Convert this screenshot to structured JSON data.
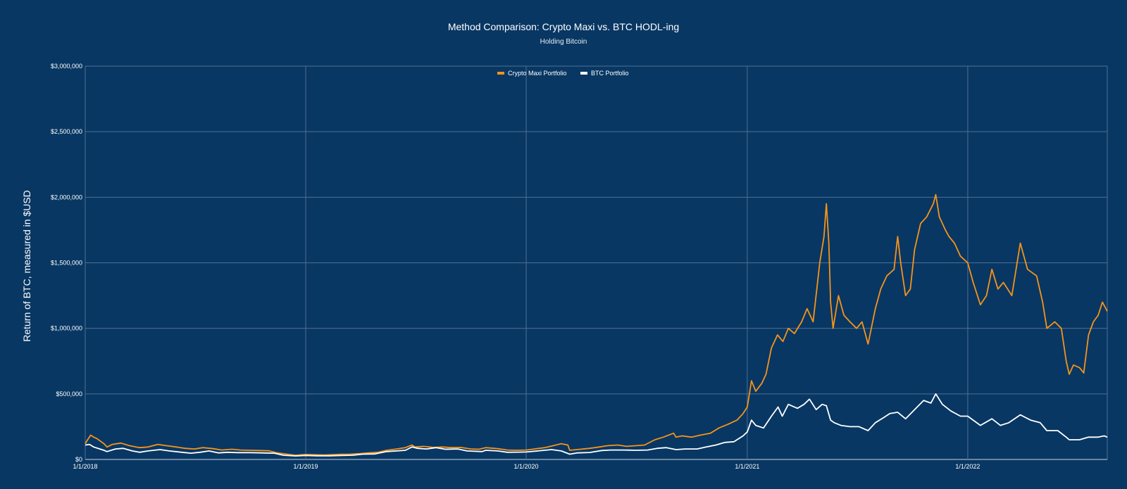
{
  "chart_data": {
    "type": "line",
    "title": "Method Comparison: Crypto Maxi vs. BTC HODL-ing",
    "subtitle": "Holding Bitcoin",
    "xlabel": "",
    "ylabel": "Return of BTC, measured in $USD",
    "ylim": [
      0,
      3000000
    ],
    "xlim": [
      "2018-01-01",
      "2022-08-20"
    ],
    "y_ticks": [
      0,
      500000,
      1000000,
      1500000,
      2000000,
      2500000,
      3000000
    ],
    "y_tick_labels": [
      "$0",
      "$500,000",
      "$1,000,000",
      "$1,500,000",
      "$2,000,000",
      "$2,500,000",
      "$3,000,000"
    ],
    "x_ticks": [
      "2018-01-01",
      "2019-01-01",
      "2020-01-01",
      "2021-01-01",
      "2022-01-01"
    ],
    "x_tick_labels": [
      "1/1/2018",
      "1/1/2019",
      "1/1/2020",
      "1/1/2021",
      "1/1/2022"
    ],
    "grid": true,
    "legend_position": "top-center",
    "series": [
      {
        "name": "Crypto Maxi Portfolio",
        "color": "#f7931a",
        "points": [
          [
            "2018-01-01",
            120000
          ],
          [
            "2018-01-05",
            150000
          ],
          [
            "2018-01-10",
            185000
          ],
          [
            "2018-01-15",
            170000
          ],
          [
            "2018-01-20",
            160000
          ],
          [
            "2018-02-01",
            120000
          ],
          [
            "2018-02-06",
            95000
          ],
          [
            "2018-02-15",
            115000
          ],
          [
            "2018-03-01",
            125000
          ],
          [
            "2018-03-15",
            105000
          ],
          [
            "2018-04-01",
            90000
          ],
          [
            "2018-04-15",
            95000
          ],
          [
            "2018-05-01",
            115000
          ],
          [
            "2018-05-15",
            105000
          ],
          [
            "2018-06-01",
            95000
          ],
          [
            "2018-06-15",
            85000
          ],
          [
            "2018-07-01",
            80000
          ],
          [
            "2018-07-15",
            90000
          ],
          [
            "2018-08-01",
            82000
          ],
          [
            "2018-08-15",
            72000
          ],
          [
            "2018-09-01",
            78000
          ],
          [
            "2018-09-15",
            72000
          ],
          [
            "2018-10-01",
            70000
          ],
          [
            "2018-10-15",
            68000
          ],
          [
            "2018-11-01",
            66000
          ],
          [
            "2018-11-15",
            50000
          ],
          [
            "2018-12-01",
            40000
          ],
          [
            "2018-12-15",
            32000
          ],
          [
            "2019-01-01",
            38000
          ],
          [
            "2019-01-15",
            36000
          ],
          [
            "2019-02-01",
            34000
          ],
          [
            "2019-02-15",
            37000
          ],
          [
            "2019-03-01",
            39000
          ],
          [
            "2019-03-15",
            40000
          ],
          [
            "2019-04-01",
            45000
          ],
          [
            "2019-04-15",
            50000
          ],
          [
            "2019-05-01",
            55000
          ],
          [
            "2019-05-15",
            70000
          ],
          [
            "2019-06-01",
            80000
          ],
          [
            "2019-06-15",
            90000
          ],
          [
            "2019-06-26",
            110000
          ],
          [
            "2019-07-01",
            95000
          ],
          [
            "2019-07-15",
            100000
          ],
          [
            "2019-08-01",
            92000
          ],
          [
            "2019-08-15",
            95000
          ],
          [
            "2019-09-01",
            90000
          ],
          [
            "2019-09-15",
            92000
          ],
          [
            "2019-10-01",
            80000
          ],
          [
            "2019-10-15",
            78000
          ],
          [
            "2019-10-26",
            90000
          ],
          [
            "2019-11-15",
            82000
          ],
          [
            "2019-12-01",
            72000
          ],
          [
            "2019-12-15",
            70000
          ],
          [
            "2020-01-01",
            72000
          ],
          [
            "2020-01-15",
            80000
          ],
          [
            "2020-02-01",
            90000
          ],
          [
            "2020-02-15",
            105000
          ],
          [
            "2020-02-28",
            120000
          ],
          [
            "2020-03-10",
            110000
          ],
          [
            "2020-03-13",
            70000
          ],
          [
            "2020-03-25",
            75000
          ],
          [
            "2020-04-15",
            85000
          ],
          [
            "2020-05-01",
            95000
          ],
          [
            "2020-05-15",
            105000
          ],
          [
            "2020-06-01",
            110000
          ],
          [
            "2020-06-15",
            100000
          ],
          [
            "2020-07-01",
            105000
          ],
          [
            "2020-07-15",
            110000
          ],
          [
            "2020-08-01",
            150000
          ],
          [
            "2020-08-15",
            170000
          ],
          [
            "2020-09-01",
            200000
          ],
          [
            "2020-09-05",
            170000
          ],
          [
            "2020-09-15",
            180000
          ],
          [
            "2020-10-01",
            170000
          ],
          [
            "2020-10-15",
            185000
          ],
          [
            "2020-11-01",
            200000
          ],
          [
            "2020-11-15",
            240000
          ],
          [
            "2020-12-01",
            270000
          ],
          [
            "2020-12-15",
            300000
          ],
          [
            "2020-12-25",
            350000
          ],
          [
            "2021-01-01",
            400000
          ],
          [
            "2021-01-08",
            600000
          ],
          [
            "2021-01-15",
            520000
          ],
          [
            "2021-01-25",
            580000
          ],
          [
            "2021-02-01",
            650000
          ],
          [
            "2021-02-10",
            850000
          ],
          [
            "2021-02-20",
            950000
          ],
          [
            "2021-03-01",
            900000
          ],
          [
            "2021-03-10",
            1000000
          ],
          [
            "2021-03-20",
            960000
          ],
          [
            "2021-04-01",
            1050000
          ],
          [
            "2021-04-10",
            1150000
          ],
          [
            "2021-04-20",
            1050000
          ],
          [
            "2021-05-01",
            1500000
          ],
          [
            "2021-05-08",
            1700000
          ],
          [
            "2021-05-12",
            1950000
          ],
          [
            "2021-05-16",
            1650000
          ],
          [
            "2021-05-19",
            1200000
          ],
          [
            "2021-05-23",
            1000000
          ],
          [
            "2021-06-01",
            1250000
          ],
          [
            "2021-06-10",
            1100000
          ],
          [
            "2021-06-20",
            1050000
          ],
          [
            "2021-07-01",
            1000000
          ],
          [
            "2021-07-10",
            1050000
          ],
          [
            "2021-07-20",
            880000
          ],
          [
            "2021-08-01",
            1150000
          ],
          [
            "2021-08-10",
            1300000
          ],
          [
            "2021-08-20",
            1400000
          ],
          [
            "2021-09-01",
            1450000
          ],
          [
            "2021-09-07",
            1700000
          ],
          [
            "2021-09-12",
            1500000
          ],
          [
            "2021-09-20",
            1250000
          ],
          [
            "2021-09-28",
            1300000
          ],
          [
            "2021-10-05",
            1600000
          ],
          [
            "2021-10-15",
            1800000
          ],
          [
            "2021-10-25",
            1850000
          ],
          [
            "2021-11-05",
            1950000
          ],
          [
            "2021-11-09",
            2020000
          ],
          [
            "2021-11-15",
            1850000
          ],
          [
            "2021-11-25",
            1750000
          ],
          [
            "2021-12-01",
            1700000
          ],
          [
            "2021-12-10",
            1650000
          ],
          [
            "2021-12-20",
            1550000
          ],
          [
            "2022-01-01",
            1500000
          ],
          [
            "2022-01-10",
            1350000
          ],
          [
            "2022-01-22",
            1180000
          ],
          [
            "2022-02-01",
            1250000
          ],
          [
            "2022-02-10",
            1450000
          ],
          [
            "2022-02-20",
            1300000
          ],
          [
            "2022-03-01",
            1350000
          ],
          [
            "2022-03-15",
            1250000
          ],
          [
            "2022-03-29",
            1650000
          ],
          [
            "2022-04-10",
            1450000
          ],
          [
            "2022-04-25",
            1400000
          ],
          [
            "2022-05-05",
            1200000
          ],
          [
            "2022-05-12",
            1000000
          ],
          [
            "2022-05-25",
            1050000
          ],
          [
            "2022-06-05",
            1000000
          ],
          [
            "2022-06-13",
            750000
          ],
          [
            "2022-06-18",
            650000
          ],
          [
            "2022-06-25",
            720000
          ],
          [
            "2022-07-05",
            700000
          ],
          [
            "2022-07-12",
            660000
          ],
          [
            "2022-07-20",
            950000
          ],
          [
            "2022-07-28",
            1050000
          ],
          [
            "2022-08-05",
            1100000
          ],
          [
            "2022-08-12",
            1200000
          ],
          [
            "2022-08-20",
            1130000
          ]
        ]
      },
      {
        "name": "BTC Portfolio",
        "color": "#ffffff",
        "points": [
          [
            "2018-01-01",
            110000
          ],
          [
            "2018-01-08",
            115000
          ],
          [
            "2018-01-15",
            95000
          ],
          [
            "2018-02-01",
            70000
          ],
          [
            "2018-02-06",
            60000
          ],
          [
            "2018-02-20",
            80000
          ],
          [
            "2018-03-05",
            85000
          ],
          [
            "2018-03-20",
            65000
          ],
          [
            "2018-04-01",
            55000
          ],
          [
            "2018-04-15",
            65000
          ],
          [
            "2018-05-05",
            75000
          ],
          [
            "2018-05-20",
            65000
          ],
          [
            "2018-06-10",
            55000
          ],
          [
            "2018-06-25",
            48000
          ],
          [
            "2018-07-10",
            55000
          ],
          [
            "2018-07-25",
            65000
          ],
          [
            "2018-08-10",
            50000
          ],
          [
            "2018-08-25",
            55000
          ],
          [
            "2018-09-10",
            52000
          ],
          [
            "2018-10-01",
            52000
          ],
          [
            "2018-10-20",
            50000
          ],
          [
            "2018-11-10",
            48000
          ],
          [
            "2018-11-25",
            32000
          ],
          [
            "2018-12-15",
            27000
          ],
          [
            "2019-01-01",
            30000
          ],
          [
            "2019-01-20",
            28000
          ],
          [
            "2019-02-10",
            28000
          ],
          [
            "2019-03-01",
            30000
          ],
          [
            "2019-03-20",
            32000
          ],
          [
            "2019-04-05",
            40000
          ],
          [
            "2019-04-25",
            42000
          ],
          [
            "2019-05-15",
            60000
          ],
          [
            "2019-06-01",
            65000
          ],
          [
            "2019-06-15",
            70000
          ],
          [
            "2019-06-26",
            95000
          ],
          [
            "2019-07-05",
            85000
          ],
          [
            "2019-07-20",
            80000
          ],
          [
            "2019-08-05",
            90000
          ],
          [
            "2019-08-20",
            78000
          ],
          [
            "2019-09-10",
            80000
          ],
          [
            "2019-09-25",
            65000
          ],
          [
            "2019-10-20",
            60000
          ],
          [
            "2019-10-26",
            70000
          ],
          [
            "2019-11-15",
            65000
          ],
          [
            "2019-12-01",
            55000
          ],
          [
            "2019-12-20",
            56000
          ],
          [
            "2020-01-01",
            57000
          ],
          [
            "2020-01-20",
            65000
          ],
          [
            "2020-02-12",
            75000
          ],
          [
            "2020-02-28",
            65000
          ],
          [
            "2020-03-13",
            40000
          ],
          [
            "2020-03-25",
            50000
          ],
          [
            "2020-04-15",
            53000
          ],
          [
            "2020-05-05",
            68000
          ],
          [
            "2020-05-20",
            72000
          ],
          [
            "2020-06-10",
            72000
          ],
          [
            "2020-06-30",
            70000
          ],
          [
            "2020-07-20",
            72000
          ],
          [
            "2020-08-05",
            85000
          ],
          [
            "2020-08-20",
            90000
          ],
          [
            "2020-09-05",
            75000
          ],
          [
            "2020-09-20",
            80000
          ],
          [
            "2020-10-10",
            80000
          ],
          [
            "2020-10-25",
            95000
          ],
          [
            "2020-11-10",
            110000
          ],
          [
            "2020-11-25",
            130000
          ],
          [
            "2020-12-10",
            135000
          ],
          [
            "2020-12-25",
            180000
          ],
          [
            "2021-01-01",
            210000
          ],
          [
            "2021-01-08",
            300000
          ],
          [
            "2021-01-15",
            260000
          ],
          [
            "2021-01-28",
            240000
          ],
          [
            "2021-02-10",
            330000
          ],
          [
            "2021-02-21",
            400000
          ],
          [
            "2021-02-28",
            330000
          ],
          [
            "2021-03-10",
            420000
          ],
          [
            "2021-03-25",
            390000
          ],
          [
            "2021-04-05",
            420000
          ],
          [
            "2021-04-14",
            460000
          ],
          [
            "2021-04-25",
            380000
          ],
          [
            "2021-05-05",
            420000
          ],
          [
            "2021-05-12",
            410000
          ],
          [
            "2021-05-19",
            300000
          ],
          [
            "2021-05-25",
            280000
          ],
          [
            "2021-06-05",
            260000
          ],
          [
            "2021-06-20",
            250000
          ],
          [
            "2021-07-05",
            250000
          ],
          [
            "2021-07-20",
            220000
          ],
          [
            "2021-08-01",
            280000
          ],
          [
            "2021-08-15",
            320000
          ],
          [
            "2021-08-25",
            350000
          ],
          [
            "2021-09-07",
            360000
          ],
          [
            "2021-09-20",
            310000
          ],
          [
            "2021-10-05",
            380000
          ],
          [
            "2021-10-20",
            450000
          ],
          [
            "2021-11-01",
            430000
          ],
          [
            "2021-11-09",
            500000
          ],
          [
            "2021-11-20",
            420000
          ],
          [
            "2021-12-04",
            370000
          ],
          [
            "2021-12-20",
            330000
          ],
          [
            "2022-01-01",
            330000
          ],
          [
            "2022-01-10",
            300000
          ],
          [
            "2022-01-22",
            260000
          ],
          [
            "2022-02-10",
            310000
          ],
          [
            "2022-02-24",
            260000
          ],
          [
            "2022-03-10",
            280000
          ],
          [
            "2022-03-29",
            340000
          ],
          [
            "2022-04-15",
            300000
          ],
          [
            "2022-05-01",
            280000
          ],
          [
            "2022-05-12",
            220000
          ],
          [
            "2022-05-30",
            220000
          ],
          [
            "2022-06-13",
            170000
          ],
          [
            "2022-06-18",
            150000
          ],
          [
            "2022-07-05",
            150000
          ],
          [
            "2022-07-20",
            170000
          ],
          [
            "2022-08-05",
            170000
          ],
          [
            "2022-08-15",
            180000
          ],
          [
            "2022-08-20",
            170000
          ]
        ]
      }
    ]
  }
}
